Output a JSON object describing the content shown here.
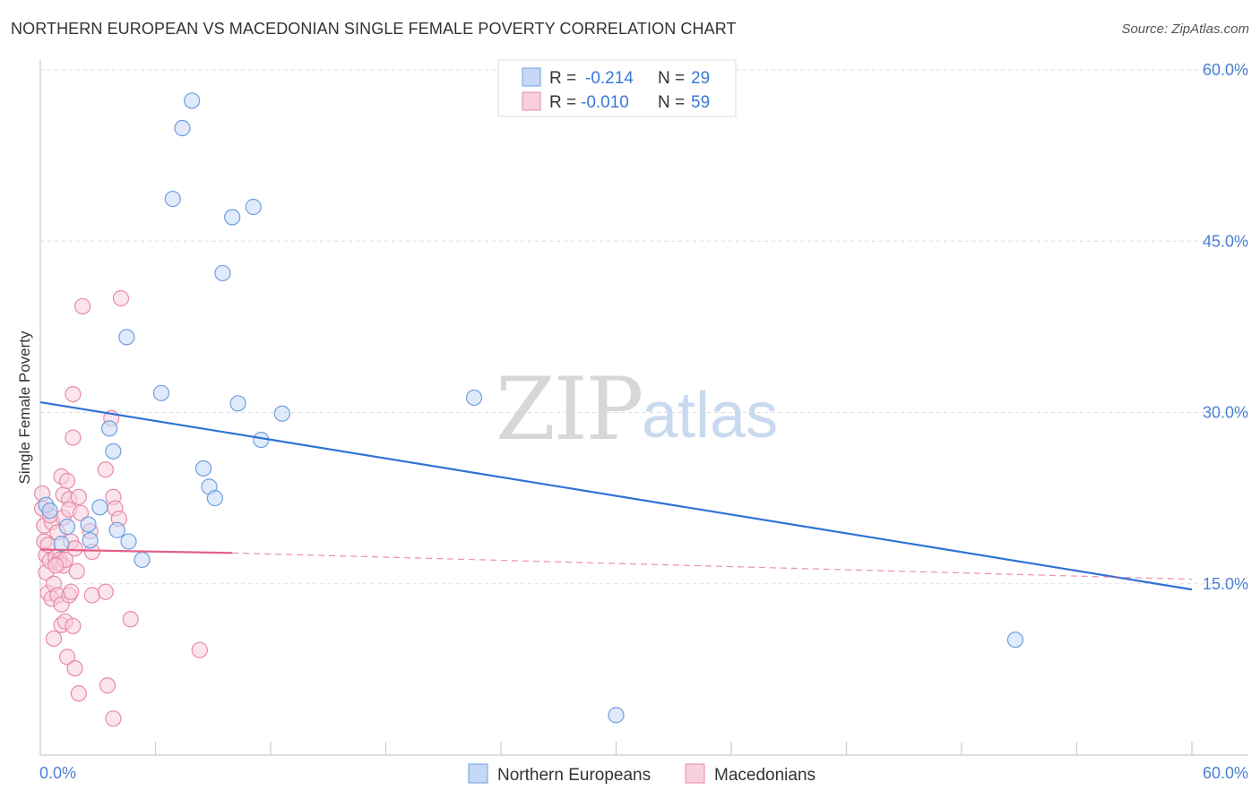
{
  "title": "NORTHERN EUROPEAN VS MACEDONIAN SINGLE FEMALE POVERTY CORRELATION CHART",
  "source": "Source: ZipAtlas.com",
  "watermark": {
    "zip": "ZIP",
    "atlas": "atlas"
  },
  "colors": {
    "blue_fill": "#c5d8f5",
    "blue_stroke": "#6f9fe0",
    "blue_line": "#2f72d6",
    "pink_fill": "#f8cfdc",
    "pink_stroke": "#e88aa8",
    "pink_line": "#e4608a",
    "grid": "#dddddd",
    "axis_text": "#4a7fd4"
  },
  "legend": {
    "rows": [
      {
        "r_label": "R =",
        "r_value": "-0.214",
        "n_label": "N =",
        "n_value": "29"
      },
      {
        "r_label": "R =",
        "r_value": "-0.010",
        "n_label": "N =",
        "n_value": "59"
      }
    ]
  },
  "bottom_legend": {
    "series1": "Northern Europeans",
    "series2": "Macedonians"
  },
  "chart_data": {
    "type": "scatter",
    "xlabel": "",
    "ylabel": "Single Female Poverty",
    "xlim": [
      0,
      60
    ],
    "ylim": [
      0,
      60
    ],
    "x_tick_labels": [
      "0.0%",
      "60.0%"
    ],
    "y_ticks": [
      15,
      30,
      45,
      60
    ],
    "y_tick_labels": [
      "15.0%",
      "30.0%",
      "45.0%",
      "60.0%"
    ],
    "grid": true,
    "series": [
      {
        "name": "Northern Europeans",
        "r": -0.214,
        "n": 29,
        "trend": {
          "x": [
            0,
            60
          ],
          "y": [
            30.9,
            14.5
          ],
          "dashed_after": null
        },
        "points": [
          [
            0.3,
            21.9
          ],
          [
            1.1,
            18.5
          ],
          [
            1.4,
            20.0
          ],
          [
            2.5,
            20.2
          ],
          [
            3.1,
            21.7
          ],
          [
            2.6,
            18.8
          ],
          [
            3.6,
            28.6
          ],
          [
            3.8,
            26.6
          ],
          [
            4.6,
            18.7
          ],
          [
            5.3,
            17.1
          ],
          [
            4.0,
            19.7
          ],
          [
            4.5,
            36.6
          ],
          [
            6.3,
            31.7
          ],
          [
            6.9,
            48.7
          ],
          [
            7.4,
            54.9
          ],
          [
            7.9,
            57.3
          ],
          [
            8.5,
            25.1
          ],
          [
            8.8,
            23.5
          ],
          [
            9.1,
            22.5
          ],
          [
            9.5,
            42.2
          ],
          [
            10.0,
            47.1
          ],
          [
            10.3,
            30.8
          ],
          [
            11.1,
            48.0
          ],
          [
            11.5,
            27.6
          ],
          [
            12.6,
            29.9
          ],
          [
            22.6,
            31.3
          ],
          [
            30.0,
            3.5
          ],
          [
            50.8,
            10.1
          ],
          [
            0.5,
            21.4
          ]
        ]
      },
      {
        "name": "Macedonians",
        "r": -0.01,
        "n": 59,
        "trend": {
          "x": [
            0,
            10,
            60
          ],
          "y": [
            18.0,
            17.7,
            15.4
          ],
          "dashed_after": 10
        },
        "points": [
          [
            0.1,
            22.9
          ],
          [
            0.1,
            21.6
          ],
          [
            0.2,
            20.1
          ],
          [
            0.2,
            18.7
          ],
          [
            0.3,
            17.5
          ],
          [
            0.3,
            16.0
          ],
          [
            0.4,
            14.2
          ],
          [
            0.4,
            18.4
          ],
          [
            0.5,
            17.0
          ],
          [
            0.6,
            20.4
          ],
          [
            0.6,
            13.7
          ],
          [
            0.7,
            10.2
          ],
          [
            0.7,
            15.0
          ],
          [
            0.8,
            17.3
          ],
          [
            0.9,
            14.0
          ],
          [
            0.9,
            19.5
          ],
          [
            1.0,
            17.1
          ],
          [
            1.0,
            16.8
          ],
          [
            1.1,
            13.2
          ],
          [
            1.1,
            24.4
          ],
          [
            1.1,
            11.4
          ],
          [
            1.2,
            22.8
          ],
          [
            1.2,
            20.8
          ],
          [
            1.2,
            16.6
          ],
          [
            1.3,
            11.7
          ],
          [
            1.3,
            17.1
          ],
          [
            1.4,
            8.6
          ],
          [
            1.4,
            24.0
          ],
          [
            1.5,
            22.4
          ],
          [
            1.5,
            21.5
          ],
          [
            1.5,
            14.0
          ],
          [
            1.6,
            14.3
          ],
          [
            1.6,
            18.7
          ],
          [
            1.7,
            11.3
          ],
          [
            1.7,
            31.6
          ],
          [
            1.7,
            27.8
          ],
          [
            1.8,
            7.6
          ],
          [
            1.8,
            18.1
          ],
          [
            1.9,
            16.1
          ],
          [
            2.0,
            5.4
          ],
          [
            2.0,
            22.6
          ],
          [
            2.1,
            21.2
          ],
          [
            2.2,
            39.3
          ],
          [
            2.6,
            19.6
          ],
          [
            2.7,
            14.0
          ],
          [
            2.7,
            17.8
          ],
          [
            3.4,
            14.3
          ],
          [
            3.4,
            25.0
          ],
          [
            3.5,
            6.1
          ],
          [
            3.7,
            29.5
          ],
          [
            3.8,
            3.2
          ],
          [
            3.8,
            22.6
          ],
          [
            3.9,
            21.6
          ],
          [
            4.1,
            20.7
          ],
          [
            4.2,
            40.0
          ],
          [
            4.7,
            11.9
          ],
          [
            8.3,
            9.2
          ],
          [
            0.5,
            21.0
          ],
          [
            0.8,
            16.6
          ]
        ]
      }
    ]
  }
}
